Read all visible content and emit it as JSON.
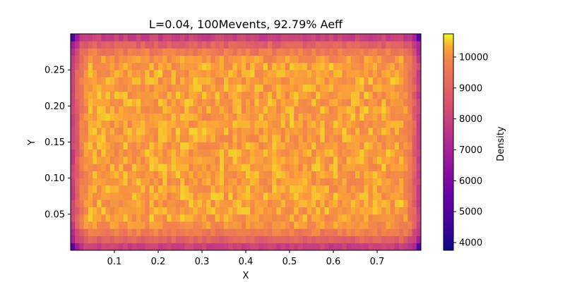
{
  "chart_data": {
    "type": "heatmap",
    "title": "L=0.04, 100Mevents, 92.79% Aeff",
    "xlabel": "X",
    "ylabel": "Y",
    "xlim": [
      0.0,
      0.8
    ],
    "ylim": [
      0.0,
      0.3
    ],
    "x_ticks": [
      0.1,
      0.2,
      0.3,
      0.4,
      0.5,
      0.6,
      0.7
    ],
    "x_tick_labels": [
      "0.1",
      "0.2",
      "0.3",
      "0.4",
      "0.5",
      "0.6",
      "0.7"
    ],
    "y_ticks": [
      0.05,
      0.1,
      0.15,
      0.2,
      0.25
    ],
    "y_tick_labels": [
      "0.05",
      "0.10",
      "0.15",
      "0.20",
      "0.25"
    ],
    "colorbar": {
      "label": "Density",
      "range": [
        3750,
        10750
      ],
      "ticks": [
        4000,
        5000,
        6000,
        7000,
        8000,
        9000,
        10000
      ],
      "tick_labels": [
        "4000",
        "5000",
        "6000",
        "7000",
        "8000",
        "9000",
        "10000"
      ],
      "colormap": "plasma"
    },
    "grid": false,
    "bins": {
      "nx": 80,
      "ny": 30
    },
    "density_profile": {
      "interior": 10200,
      "edge_row": 8000,
      "corner": 3800,
      "edge_width_data": 0.04
    }
  }
}
